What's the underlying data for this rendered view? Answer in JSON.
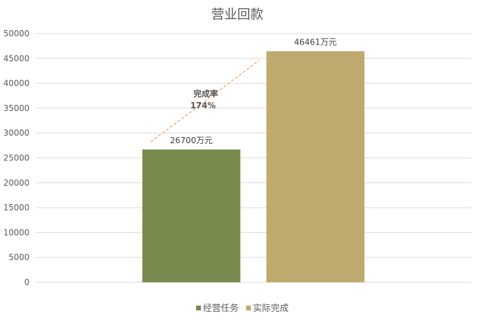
{
  "chart_data": {
    "type": "bar",
    "title": "营业回款",
    "categories": [
      "经营任务",
      "实际完成"
    ],
    "values": [
      26700,
      46461
    ],
    "data_labels": [
      "26700万元",
      "46461万元"
    ],
    "series_colors": [
      "#778B4F",
      "#BEAA6E"
    ],
    "ylim": [
      0,
      50000
    ],
    "yticks": [
      "0",
      "5000",
      "10000",
      "15000",
      "20000",
      "25000",
      "30000",
      "35000",
      "40000",
      "45000",
      "50000"
    ],
    "grid": true,
    "legend_position": "bottom",
    "annotation": {
      "label": "完成率",
      "value": "174%",
      "arrow_color": "#F4A060"
    }
  }
}
